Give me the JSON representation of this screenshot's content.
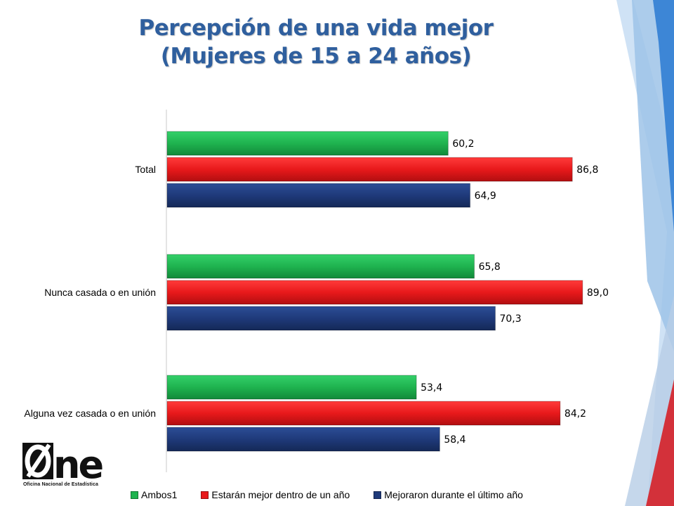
{
  "chart_data": {
    "type": "bar",
    "orientation": "horizontal",
    "title": [
      "Percepción de una vida mejor",
      "(Mujeres de 15 a 24 años)"
    ],
    "categories": [
      "Total",
      "Nunca casada o en unión",
      "Alguna vez casada o en unión"
    ],
    "series": [
      {
        "name": "Ambos1",
        "color": "#1fb34f",
        "values": [
          60.2,
          65.8,
          53.4
        ],
        "labels": [
          "60,2",
          "65,8",
          "53,4"
        ]
      },
      {
        "name": "Estarán mejor dentro de un año",
        "color": "#e8191b",
        "values": [
          86.8,
          89.0,
          84.2
        ],
        "labels": [
          "86,8",
          "89,0",
          "84,2"
        ]
      },
      {
        "name": "Mejoraron durante el último año",
        "color": "#1f3a7a",
        "values": [
          64.9,
          70.3,
          58.4
        ],
        "labels": [
          "64,9",
          "70,3",
          "58,4"
        ]
      }
    ],
    "xlim": [
      0,
      100
    ],
    "grid": false,
    "legend_position": "bottom"
  },
  "logo": {
    "text": "One",
    "caption": "Oficina Nacional de Estadística"
  },
  "colors": {
    "title": "#2f5f9e",
    "decor_light": "#9ec3e8",
    "decor_mid": "#4a90d9",
    "decor_red": "#d3313a"
  }
}
